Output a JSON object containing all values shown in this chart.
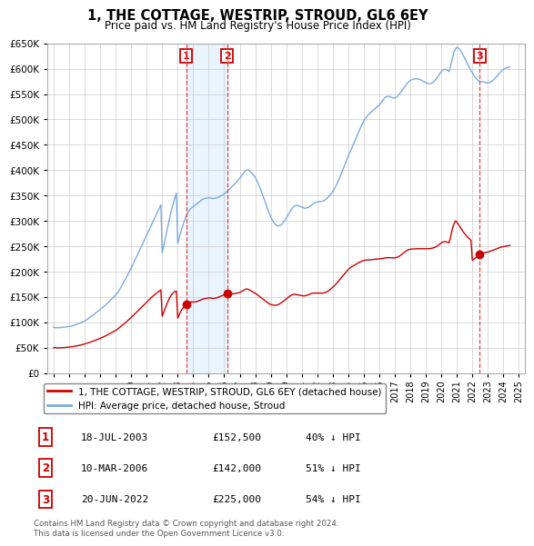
{
  "title": "1, THE COTTAGE, WESTRIP, STROUD, GL6 6EY",
  "subtitle": "Price paid vs. HM Land Registry's House Price Index (HPI)",
  "ylim": [
    0,
    650000
  ],
  "yticks": [
    0,
    50000,
    100000,
    150000,
    200000,
    250000,
    300000,
    350000,
    400000,
    450000,
    500000,
    550000,
    600000,
    650000
  ],
  "xlim_start": 1994.6,
  "xlim_end": 2025.4,
  "legend_property": "1, THE COTTAGE, WESTRIP, STROUD, GL6 6EY (detached house)",
  "legend_hpi": "HPI: Average price, detached house, Stroud",
  "transactions": [
    {
      "num": 1,
      "date": "18-JUL-2003",
      "price": 152500,
      "pct": "40%",
      "year": 2003.54
    },
    {
      "num": 2,
      "date": "10-MAR-2006",
      "price": 142000,
      "pct": "51%",
      "year": 2006.19
    },
    {
      "num": 3,
      "date": "20-JUN-2022",
      "price": 225000,
      "pct": "54%",
      "year": 2022.47
    }
  ],
  "footer": "Contains HM Land Registry data © Crown copyright and database right 2024.\nThis data is licensed under the Open Government Licence v3.0.",
  "hpi_color": "#7aabdb",
  "property_color": "#cc0000",
  "marker_box_color": "#cc0000",
  "vline_color": "#dd4444",
  "shade_color": "#ddeeff",
  "grid_color": "#cccccc",
  "hpi_data_years": [
    1995.0,
    1995.083,
    1995.167,
    1995.25,
    1995.333,
    1995.417,
    1995.5,
    1995.583,
    1995.667,
    1995.75,
    1995.833,
    1995.917,
    1996.0,
    1996.083,
    1996.167,
    1996.25,
    1996.333,
    1996.417,
    1996.5,
    1996.583,
    1996.667,
    1996.75,
    1996.833,
    1996.917,
    1997.0,
    1997.083,
    1997.167,
    1997.25,
    1997.333,
    1997.417,
    1997.5,
    1997.583,
    1997.667,
    1997.75,
    1997.833,
    1997.917,
    1998.0,
    1998.083,
    1998.167,
    1998.25,
    1998.333,
    1998.417,
    1998.5,
    1998.583,
    1998.667,
    1998.75,
    1998.833,
    1998.917,
    1999.0,
    1999.083,
    1999.167,
    1999.25,
    1999.333,
    1999.417,
    1999.5,
    1999.583,
    1999.667,
    1999.75,
    1999.833,
    1999.917,
    2000.0,
    2000.083,
    2000.167,
    2000.25,
    2000.333,
    2000.417,
    2000.5,
    2000.583,
    2000.667,
    2000.75,
    2000.833,
    2000.917,
    2001.0,
    2001.083,
    2001.167,
    2001.25,
    2001.333,
    2001.417,
    2001.5,
    2001.583,
    2001.667,
    2001.75,
    2001.833,
    2001.917,
    2002.0,
    2002.083,
    2002.167,
    2002.25,
    2002.333,
    2002.417,
    2002.5,
    2002.583,
    2002.667,
    2002.75,
    2002.833,
    2002.917,
    2003.0,
    2003.083,
    2003.167,
    2003.25,
    2003.333,
    2003.417,
    2003.5,
    2003.583,
    2003.667,
    2003.75,
    2003.833,
    2003.917,
    2004.0,
    2004.083,
    2004.167,
    2004.25,
    2004.333,
    2004.417,
    2004.5,
    2004.583,
    2004.667,
    2004.75,
    2004.833,
    2004.917,
    2005.0,
    2005.083,
    2005.167,
    2005.25,
    2005.333,
    2005.417,
    2005.5,
    2005.583,
    2005.667,
    2005.75,
    2005.833,
    2005.917,
    2006.0,
    2006.083,
    2006.167,
    2006.25,
    2006.333,
    2006.417,
    2006.5,
    2006.583,
    2006.667,
    2006.75,
    2006.833,
    2006.917,
    2007.0,
    2007.083,
    2007.167,
    2007.25,
    2007.333,
    2007.417,
    2007.5,
    2007.583,
    2007.667,
    2007.75,
    2007.833,
    2007.917,
    2008.0,
    2008.083,
    2008.167,
    2008.25,
    2008.333,
    2008.417,
    2008.5,
    2008.583,
    2008.667,
    2008.75,
    2008.833,
    2008.917,
    2009.0,
    2009.083,
    2009.167,
    2009.25,
    2009.333,
    2009.417,
    2009.5,
    2009.583,
    2009.667,
    2009.75,
    2009.833,
    2009.917,
    2010.0,
    2010.083,
    2010.167,
    2010.25,
    2010.333,
    2010.417,
    2010.5,
    2010.583,
    2010.667,
    2010.75,
    2010.833,
    2010.917,
    2011.0,
    2011.083,
    2011.167,
    2011.25,
    2011.333,
    2011.417,
    2011.5,
    2011.583,
    2011.667,
    2011.75,
    2011.833,
    2011.917,
    2012.0,
    2012.083,
    2012.167,
    2012.25,
    2012.333,
    2012.417,
    2012.5,
    2012.583,
    2012.667,
    2012.75,
    2012.833,
    2012.917,
    2013.0,
    2013.083,
    2013.167,
    2013.25,
    2013.333,
    2013.417,
    2013.5,
    2013.583,
    2013.667,
    2013.75,
    2013.833,
    2013.917,
    2014.0,
    2014.083,
    2014.167,
    2014.25,
    2014.333,
    2014.417,
    2014.5,
    2014.583,
    2014.667,
    2014.75,
    2014.833,
    2014.917,
    2015.0,
    2015.083,
    2015.167,
    2015.25,
    2015.333,
    2015.417,
    2015.5,
    2015.583,
    2015.667,
    2015.75,
    2015.833,
    2015.917,
    2016.0,
    2016.083,
    2016.167,
    2016.25,
    2016.333,
    2016.417,
    2016.5,
    2016.583,
    2016.667,
    2016.75,
    2016.833,
    2016.917,
    2017.0,
    2017.083,
    2017.167,
    2017.25,
    2017.333,
    2017.417,
    2017.5,
    2017.583,
    2017.667,
    2017.75,
    2017.833,
    2017.917,
    2018.0,
    2018.083,
    2018.167,
    2018.25,
    2018.333,
    2018.417,
    2018.5,
    2018.583,
    2018.667,
    2018.75,
    2018.833,
    2018.917,
    2019.0,
    2019.083,
    2019.167,
    2019.25,
    2019.333,
    2019.417,
    2019.5,
    2019.583,
    2019.667,
    2019.75,
    2019.833,
    2019.917,
    2020.0,
    2020.083,
    2020.167,
    2020.25,
    2020.333,
    2020.417,
    2020.5,
    2020.583,
    2020.667,
    2020.75,
    2020.833,
    2020.917,
    2021.0,
    2021.083,
    2021.167,
    2021.25,
    2021.333,
    2021.417,
    2021.5,
    2021.583,
    2021.667,
    2021.75,
    2021.833,
    2021.917,
    2022.0,
    2022.083,
    2022.167,
    2022.25,
    2022.333,
    2022.417,
    2022.5,
    2022.583,
    2022.667,
    2022.75,
    2022.833,
    2022.917,
    2023.0,
    2023.083,
    2023.167,
    2023.25,
    2023.333,
    2023.417,
    2023.5,
    2023.583,
    2023.667,
    2023.75,
    2023.833,
    2023.917,
    2024.0,
    2024.083,
    2024.167,
    2024.25,
    2024.333,
    2024.417
  ],
  "hpi_data_values": [
    90000,
    89500,
    89200,
    89000,
    89100,
    89300,
    89600,
    89900,
    90200,
    90500,
    90800,
    91100,
    91500,
    92000,
    92600,
    93300,
    94100,
    95000,
    96000,
    97000,
    98000,
    99100,
    100200,
    101400,
    102500,
    104000,
    105800,
    107500,
    109200,
    111000,
    113000,
    115000,
    117000,
    119000,
    121000,
    123000,
    125000,
    127000,
    129200,
    131500,
    133800,
    136200,
    138500,
    141000,
    143500,
    146000,
    148500,
    151000,
    153500,
    156500,
    160000,
    164000,
    168500,
    173000,
    177500,
    182000,
    186500,
    191500,
    196500,
    201500,
    206500,
    212000,
    217500,
    223000,
    228500,
    234000,
    239500,
    245000,
    250500,
    256000,
    261500,
    267000,
    272000,
    277000,
    282500,
    288000,
    293500,
    299000,
    305000,
    310000,
    315500,
    321000,
    326000,
    331500,
    237000,
    248000,
    260000,
    272000,
    284000,
    296000,
    308000,
    319000,
    329000,
    338000,
    347000,
    355000,
    255000,
    265000,
    274000,
    283000,
    291000,
    299000,
    306000,
    312000,
    317000,
    321000,
    324000,
    326000,
    328000,
    330000,
    332000,
    334000,
    336000,
    338000,
    340000,
    342000,
    343000,
    344000,
    344500,
    344800,
    345000,
    345000,
    344500,
    344000,
    344000,
    344500,
    345000,
    346000,
    347000,
    348500,
    350000,
    351500,
    353000,
    355000,
    357500,
    360000,
    362500,
    365000,
    367500,
    370000,
    372500,
    375000,
    378000,
    381000,
    384000,
    387500,
    391000,
    394500,
    397500,
    399500,
    400500,
    400000,
    398000,
    395000,
    392000,
    389000,
    386000,
    381000,
    375000,
    369000,
    363000,
    356000,
    349000,
    342000,
    335000,
    328000,
    321000,
    314000,
    308000,
    302500,
    298000,
    294500,
    292000,
    290500,
    290000,
    290500,
    292000,
    294500,
    297500,
    301000,
    305000,
    309500,
    314000,
    318500,
    322500,
    326000,
    328500,
    330000,
    330500,
    330000,
    329000,
    328000,
    327000,
    326000,
    325000,
    325000,
    325500,
    326500,
    328000,
    330000,
    332000,
    334000,
    335500,
    336500,
    337000,
    337500,
    337800,
    338000,
    338500,
    339500,
    341000,
    343000,
    345500,
    348500,
    351500,
    354500,
    358000,
    362000,
    366500,
    371500,
    377000,
    383000,
    389000,
    395500,
    402000,
    408500,
    415000,
    421500,
    428000,
    433500,
    439000,
    445000,
    451000,
    457000,
    463000,
    469000,
    475000,
    481000,
    486500,
    492000,
    497000,
    501000,
    504500,
    507500,
    510000,
    512500,
    515000,
    517500,
    520000,
    522000,
    524000,
    526000,
    528500,
    531500,
    535000,
    538500,
    542000,
    544000,
    545000,
    545500,
    545000,
    544000,
    543000,
    542000,
    542000,
    543000,
    545000,
    548000,
    551500,
    555000,
    558500,
    562000,
    565500,
    569000,
    572000,
    574500,
    576500,
    578000,
    579000,
    579500,
    580000,
    580000,
    579500,
    579000,
    578000,
    576500,
    575000,
    573500,
    572000,
    571000,
    570500,
    570500,
    571000,
    572000,
    574000,
    576500,
    579500,
    583000,
    587000,
    590500,
    594000,
    597000,
    598500,
    599000,
    598000,
    596000,
    594000,
    603000,
    614000,
    625000,
    634000,
    639000,
    642000,
    641000,
    639000,
    635000,
    631000,
    626000,
    621000,
    616000,
    611000,
    606000,
    601000,
    596000,
    592000,
    588000,
    584000,
    581000,
    578000,
    576000,
    575000,
    574500,
    574000,
    573500,
    573000,
    572500,
    572000,
    572500,
    573500,
    575000,
    577000,
    579500,
    582000,
    585000,
    588000,
    591000,
    594000,
    596500,
    598500,
    600000,
    601000,
    602000,
    603000,
    604000
  ],
  "prop_data_years": [
    1995.0,
    1995.083,
    1995.167,
    1995.25,
    1995.333,
    1995.417,
    1995.5,
    1995.583,
    1995.667,
    1995.75,
    1995.833,
    1995.917,
    1996.0,
    1996.083,
    1996.167,
    1996.25,
    1996.333,
    1996.417,
    1996.5,
    1996.583,
    1996.667,
    1996.75,
    1996.833,
    1996.917,
    1997.0,
    1997.083,
    1997.167,
    1997.25,
    1997.333,
    1997.417,
    1997.5,
    1997.583,
    1997.667,
    1997.75,
    1997.833,
    1997.917,
    1998.0,
    1998.083,
    1998.167,
    1998.25,
    1998.333,
    1998.417,
    1998.5,
    1998.583,
    1998.667,
    1998.75,
    1998.833,
    1998.917,
    1999.0,
    1999.083,
    1999.167,
    1999.25,
    1999.333,
    1999.417,
    1999.5,
    1999.583,
    1999.667,
    1999.75,
    1999.833,
    1999.917,
    2000.0,
    2000.083,
    2000.167,
    2000.25,
    2000.333,
    2000.417,
    2000.5,
    2000.583,
    2000.667,
    2000.75,
    2000.833,
    2000.917,
    2001.0,
    2001.083,
    2001.167,
    2001.25,
    2001.333,
    2001.417,
    2001.5,
    2001.583,
    2001.667,
    2001.75,
    2001.833,
    2001.917,
    2002.0,
    2002.083,
    2002.167,
    2002.25,
    2002.333,
    2002.417,
    2002.5,
    2002.583,
    2002.667,
    2002.75,
    2002.833,
    2002.917,
    2003.0,
    2003.083,
    2003.167,
    2003.25,
    2003.333,
    2003.417,
    2003.5,
    2003.583,
    2003.667,
    2003.75,
    2003.833,
    2003.917,
    2004.0,
    2004.083,
    2004.167,
    2004.25,
    2004.333,
    2004.417,
    2004.5,
    2004.583,
    2004.667,
    2004.75,
    2004.833,
    2004.917,
    2005.0,
    2005.083,
    2005.167,
    2005.25,
    2005.333,
    2005.417,
    2005.5,
    2005.583,
    2005.667,
    2005.75,
    2005.833,
    2005.917,
    2006.0,
    2006.083,
    2006.167,
    2006.25,
    2006.333,
    2006.417,
    2006.5,
    2006.583,
    2006.667,
    2006.75,
    2006.833,
    2006.917,
    2007.0,
    2007.083,
    2007.167,
    2007.25,
    2007.333,
    2007.417,
    2007.5,
    2007.583,
    2007.667,
    2007.75,
    2007.833,
    2007.917,
    2008.0,
    2008.083,
    2008.167,
    2008.25,
    2008.333,
    2008.417,
    2008.5,
    2008.583,
    2008.667,
    2008.75,
    2008.833,
    2008.917,
    2009.0,
    2009.083,
    2009.167,
    2009.25,
    2009.333,
    2009.417,
    2009.5,
    2009.583,
    2009.667,
    2009.75,
    2009.833,
    2009.917,
    2010.0,
    2010.083,
    2010.167,
    2010.25,
    2010.333,
    2010.417,
    2010.5,
    2010.583,
    2010.667,
    2010.75,
    2010.833,
    2010.917,
    2011.0,
    2011.083,
    2011.167,
    2011.25,
    2011.333,
    2011.417,
    2011.5,
    2011.583,
    2011.667,
    2011.75,
    2011.833,
    2011.917,
    2012.0,
    2012.083,
    2012.167,
    2012.25,
    2012.333,
    2012.417,
    2012.5,
    2012.583,
    2012.667,
    2012.75,
    2012.833,
    2012.917,
    2013.0,
    2013.083,
    2013.167,
    2013.25,
    2013.333,
    2013.417,
    2013.5,
    2013.583,
    2013.667,
    2013.75,
    2013.833,
    2013.917,
    2014.0,
    2014.083,
    2014.167,
    2014.25,
    2014.333,
    2014.417,
    2014.5,
    2014.583,
    2014.667,
    2014.75,
    2014.833,
    2014.917,
    2015.0,
    2015.083,
    2015.167,
    2015.25,
    2015.333,
    2015.417,
    2015.5,
    2015.583,
    2015.667,
    2015.75,
    2015.833,
    2015.917,
    2016.0,
    2016.083,
    2016.167,
    2016.25,
    2016.333,
    2016.417,
    2016.5,
    2016.583,
    2016.667,
    2016.75,
    2016.833,
    2016.917,
    2017.0,
    2017.083,
    2017.167,
    2017.25,
    2017.333,
    2017.417,
    2017.5,
    2017.583,
    2017.667,
    2017.75,
    2017.833,
    2017.917,
    2018.0,
    2018.083,
    2018.167,
    2018.25,
    2018.333,
    2018.417,
    2018.5,
    2018.583,
    2018.667,
    2018.75,
    2018.833,
    2018.917,
    2019.0,
    2019.083,
    2019.167,
    2019.25,
    2019.333,
    2019.417,
    2019.5,
    2019.583,
    2019.667,
    2019.75,
    2019.833,
    2019.917,
    2020.0,
    2020.083,
    2020.167,
    2020.25,
    2020.333,
    2020.417,
    2020.5,
    2020.583,
    2020.667,
    2020.75,
    2020.833,
    2020.917,
    2021.0,
    2021.083,
    2021.167,
    2021.25,
    2021.333,
    2021.417,
    2021.5,
    2021.583,
    2021.667,
    2021.75,
    2021.833,
    2021.917,
    2022.0,
    2022.083,
    2022.167,
    2022.25,
    2022.333,
    2022.417,
    2022.5,
    2022.583,
    2022.667,
    2022.75,
    2022.833,
    2022.917,
    2023.0,
    2023.083,
    2023.167,
    2023.25,
    2023.333,
    2023.417,
    2023.5,
    2023.583,
    2023.667,
    2023.75,
    2023.833,
    2023.917,
    2024.0,
    2024.083,
    2024.167,
    2024.25,
    2024.333,
    2024.417
  ],
  "prop_data_values": [
    50000,
    49800,
    49600,
    49500,
    49500,
    49600,
    49700,
    49900,
    50100,
    50300,
    50500,
    50700,
    51000,
    51300,
    51700,
    52100,
    52500,
    52900,
    53400,
    53900,
    54500,
    55100,
    55700,
    56400,
    57100,
    57900,
    58700,
    59600,
    60500,
    61400,
    62300,
    63200,
    64100,
    65100,
    66100,
    67100,
    68200,
    69300,
    70500,
    71700,
    72900,
    74200,
    75500,
    76800,
    78100,
    79500,
    80900,
    82300,
    83800,
    85500,
    87500,
    89500,
    91600,
    93700,
    95800,
    98000,
    100200,
    102500,
    104800,
    107200,
    109500,
    112000,
    114500,
    117000,
    119500,
    122000,
    124500,
    127000,
    129500,
    132000,
    134500,
    137000,
    139500,
    142000,
    144500,
    147000,
    149500,
    152000,
    154000,
    156000,
    158000,
    160000,
    162000,
    164000,
    112000,
    118000,
    125000,
    132000,
    138000,
    144000,
    149500,
    153500,
    156500,
    159000,
    160500,
    161500,
    108000,
    114000,
    119500,
    124000,
    128000,
    131500,
    134500,
    137000,
    138500,
    139500,
    140000,
    140000,
    140000,
    140000,
    140500,
    141000,
    142000,
    143000,
    144000,
    145000,
    146000,
    146500,
    147000,
    147500,
    148000,
    148000,
    147500,
    147000,
    147000,
    147500,
    148000,
    149000,
    150000,
    151000,
    152000,
    153000,
    154000,
    155000,
    156000,
    157000,
    157500,
    157000,
    156500,
    156000,
    156500,
    157000,
    157500,
    158000,
    159000,
    160000,
    161500,
    163000,
    164500,
    165500,
    165500,
    164500,
    163000,
    161500,
    160000,
    158500,
    157000,
    155500,
    153500,
    151500,
    149500,
    147500,
    145500,
    143500,
    141500,
    139500,
    137800,
    136200,
    135000,
    134200,
    133800,
    133500,
    133500,
    134000,
    135000,
    136500,
    138000,
    139800,
    141800,
    144000,
    146000,
    148000,
    150000,
    152000,
    153500,
    154500,
    155000,
    155000,
    154500,
    154000,
    153500,
    153000,
    152500,
    152000,
    152000,
    152500,
    153000,
    154000,
    155000,
    156000,
    157000,
    157500,
    157500,
    157500,
    157500,
    157500,
    157500,
    157500,
    157500,
    157800,
    158500,
    159500,
    160800,
    162500,
    164500,
    166800,
    169000,
    171500,
    174000,
    177000,
    180000,
    183000,
    186000,
    189000,
    192000,
    195000,
    198000,
    201000,
    204000,
    206500,
    208500,
    210000,
    211500,
    213000,
    214500,
    216000,
    217500,
    219000,
    220000,
    221000,
    221800,
    222300,
    222600,
    222800,
    223000,
    223200,
    223500,
    223800,
    224000,
    224200,
    224400,
    224600,
    224900,
    225200,
    225600,
    226000,
    226500,
    227000,
    227200,
    227300,
    227300,
    227200,
    227000,
    226800,
    227000,
    227500,
    228300,
    229500,
    231000,
    233000,
    235000,
    237000,
    239000,
    241000,
    242500,
    243500,
    244000,
    244300,
    244500,
    244700,
    244900,
    245000,
    245000,
    245000,
    245000,
    245000,
    245000,
    245000,
    245000,
    245000,
    245000,
    245200,
    245500,
    246000,
    246800,
    247800,
    249000,
    250500,
    252500,
    254500,
    256500,
    258000,
    258800,
    259000,
    258500,
    257500,
    256500,
    266000,
    278000,
    288000,
    295000,
    300000,
    298000,
    294000,
    290000,
    286000,
    282000,
    278000,
    275000,
    272000,
    269000,
    266500,
    264000,
    261500,
    222000,
    224000,
    226000,
    228000,
    230000,
    232000,
    234000,
    235000,
    236000,
    237000,
    237500,
    238000,
    238500,
    239000,
    240000,
    241000,
    242000,
    243000,
    244000,
    245000,
    246000,
    247000,
    248000,
    248500,
    249000,
    249500,
    250000,
    250500,
    251000,
    251500
  ]
}
